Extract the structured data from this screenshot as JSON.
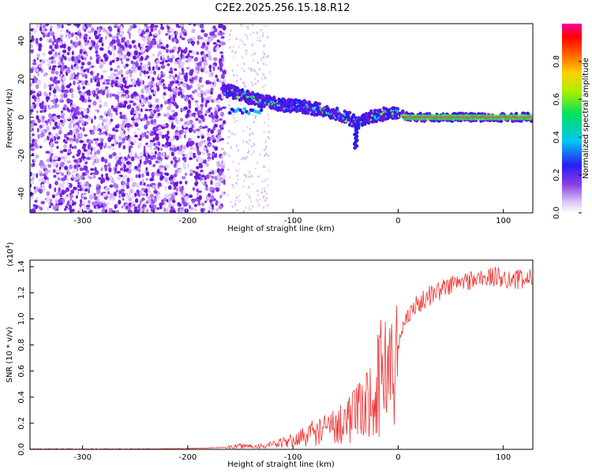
{
  "figure": {
    "title": "C2E2.2025.256.15.18.R12"
  },
  "chart_data": [
    {
      "type": "heatmap",
      "title": "C2E2.2025.256.15.18.R12",
      "xlabel": "Height of straight line (km)",
      "ylabel": "Frequency (Hz)",
      "xlim": [
        -350,
        128
      ],
      "ylim": [
        -50,
        49
      ],
      "xticks": [
        -300,
        -200,
        -100,
        0,
        100
      ],
      "xtick_labels": [
        "-300",
        "-200",
        "-100",
        "0",
        "100"
      ],
      "yticks": [
        -40,
        -20,
        0,
        20,
        40
      ],
      "ytick_labels": [
        "-40",
        "-20",
        "0",
        "20",
        "40"
      ],
      "grid": false,
      "colorbar": {
        "label": "Normalized spectral amplitude",
        "range": [
          0,
          1
        ],
        "ticks": [
          0.0,
          0.2,
          0.4,
          0.6,
          0.8
        ],
        "tick_labels": [
          "0.0",
          "0.2",
          "0.4",
          "0.6",
          "0.8"
        ],
        "colormap": "rainbow (white→purple→blue→cyan→green→yellow→red→magenta)"
      },
      "ridge": {
        "description": "dominant frequency track vs height",
        "x": [
          -165,
          -155,
          -145,
          -135,
          -125,
          -115,
          -105,
          -95,
          -85,
          -75,
          -65,
          -55,
          -45,
          -40,
          -35,
          -28,
          -20,
          -10,
          0,
          10,
          30,
          60,
          90,
          128
        ],
        "y": [
          14,
          13,
          11,
          9,
          8,
          7,
          6,
          6,
          5,
          4,
          3,
          1,
          -1,
          -3,
          -2,
          0,
          1,
          2,
          2,
          0,
          0,
          0,
          0,
          0
        ]
      }
    },
    {
      "type": "line",
      "xlabel": "Height of straight line (km)",
      "ylabel": "SNR (10 * v/v)",
      "y_multiplier_label": "(x10",
      "y_multiplier_exp": "4",
      "y_multiplier_close": ")",
      "xlim": [
        -350,
        128
      ],
      "ylim": [
        0,
        1.45
      ],
      "xticks": [
        -300,
        -200,
        -100,
        0,
        100
      ],
      "xtick_labels": [
        "-300",
        "-200",
        "-100",
        "0",
        "100"
      ],
      "yticks": [
        0.0,
        0.2,
        0.4,
        0.6,
        0.8,
        1.0,
        1.2,
        1.4
      ],
      "ytick_labels": [
        "0.0",
        "0.2",
        "0.4",
        "0.6",
        "0.8",
        "1.0",
        "1.2",
        "1.4"
      ],
      "grid": false,
      "series": [
        {
          "color": "#ee3333",
          "envelope_x": [
            -350,
            -300,
            -250,
            -200,
            -170,
            -160,
            -150,
            -140,
            -130,
            -120,
            -110,
            -100,
            -90,
            -80,
            -70,
            -60,
            -50,
            -40,
            -35,
            -30,
            -25,
            -20,
            -15,
            -10,
            -5,
            0,
            5,
            10,
            20,
            30,
            40,
            50,
            60,
            70,
            80,
            90,
            100,
            110,
            120,
            128
          ],
          "envelope_y": [
            0.0,
            0.0,
            0.0,
            0.003,
            0.01,
            0.02,
            0.03,
            0.03,
            0.03,
            0.04,
            0.06,
            0.08,
            0.12,
            0.16,
            0.18,
            0.22,
            0.28,
            0.32,
            0.36,
            0.42,
            0.5,
            0.58,
            0.72,
            0.85,
            0.8,
            0.78,
            0.95,
            1.05,
            1.12,
            1.18,
            1.22,
            1.26,
            1.28,
            1.3,
            1.31,
            1.32,
            1.32,
            1.3,
            1.3,
            1.31
          ]
        }
      ]
    }
  ]
}
